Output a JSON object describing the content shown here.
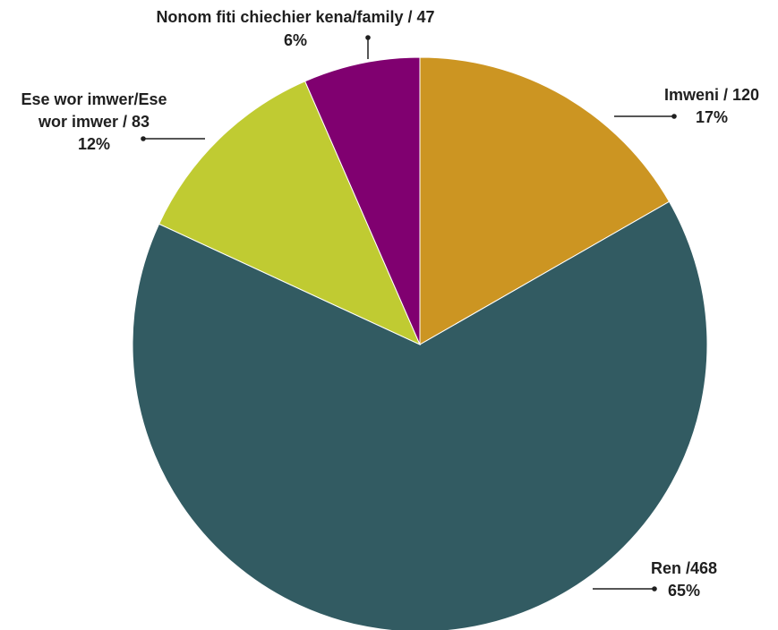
{
  "chart_data": {
    "type": "pie",
    "slices": [
      {
        "label": "Imweni / 120",
        "value": 120,
        "percent": "17%",
        "color": "#CC9522"
      },
      {
        "label": "Ren /468",
        "value": 468,
        "percent": "65%",
        "color": "#325B62"
      },
      {
        "label": "Ese wor imwer/Ese wor imwer / 83",
        "label_lines": [
          "Ese wor imwer/Ese",
          "wor imwer / 83"
        ],
        "value": 83,
        "percent": "12%",
        "color": "#C0CB32"
      },
      {
        "label": "Nonom fiti chiechier kena/family / 47",
        "value": 47,
        "percent": "6%",
        "color": "#800070"
      }
    ],
    "start_angle_deg": 0,
    "direction": "clockwise"
  }
}
